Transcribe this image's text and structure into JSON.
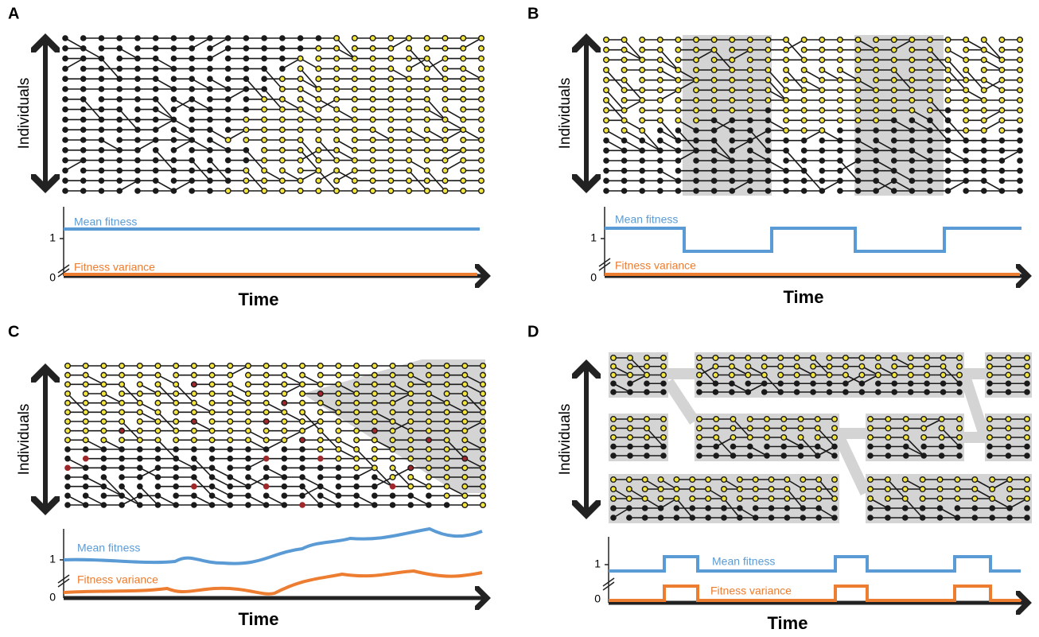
{
  "panels": [
    {
      "label": "A",
      "y_axis": "Individuals",
      "x_axis": "Time",
      "mean_label": "Mean fitness",
      "variance_label": "Fitness variance",
      "tick_high": "1",
      "tick_low": "0"
    },
    {
      "label": "B",
      "y_axis": "Individuals",
      "x_axis": "Time",
      "mean_label": "Mean fitness",
      "variance_label": "Fitness variance",
      "tick_high": "1",
      "tick_low": "0"
    },
    {
      "label": "C",
      "y_axis": "Individuals",
      "x_axis": "Time",
      "mean_label": "Mean fitness",
      "variance_label": "Fitness variance",
      "tick_high": "1",
      "tick_low": "0"
    },
    {
      "label": "D",
      "y_axis": "Individuals",
      "x_axis": "Time",
      "mean_label": "Mean fitness",
      "variance_label": "Fitness variance",
      "tick_high": "1",
      "tick_low": "0"
    }
  ]
}
